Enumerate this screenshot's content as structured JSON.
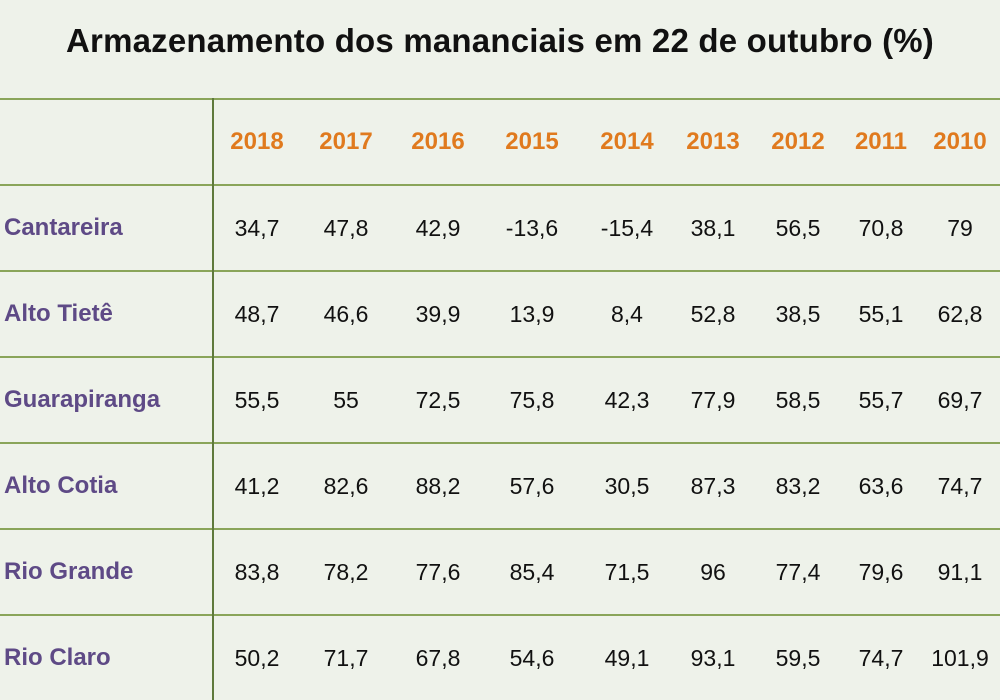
{
  "title": "Armazenamento dos mananciais em 22 de outubro (%)",
  "colors": {
    "background": "#eef2ea",
    "gridline": "#8aa55a",
    "year_header": "#e07a1e",
    "row_label": "#5e4a86",
    "value_text": "#111111"
  },
  "chart_data": {
    "type": "table",
    "title": "Armazenamento dos mananciais em 22 de outubro (%)",
    "columns": [
      "2018",
      "2017",
      "2016",
      "2015",
      "2014",
      "2013",
      "2012",
      "2011",
      "2010"
    ],
    "rows": [
      {
        "label": "Cantareira",
        "values": [
          "34,7",
          "47,8",
          "42,9",
          "-13,6",
          "-15,4",
          "38,1",
          "56,5",
          "70,8",
          "79"
        ]
      },
      {
        "label": "Alto Tietê",
        "values": [
          "48,7",
          "46,6",
          "39,9",
          "13,9",
          "8,4",
          "52,8",
          "38,5",
          "55,1",
          "62,8"
        ]
      },
      {
        "label": "Guarapiranga",
        "values": [
          "55,5",
          "55",
          "72,5",
          "75,8",
          "42,3",
          "77,9",
          "58,5",
          "55,7",
          "69,7"
        ]
      },
      {
        "label": "Alto Cotia",
        "values": [
          "41,2",
          "82,6",
          "88,2",
          "57,6",
          "30,5",
          "87,3",
          "83,2",
          "63,6",
          "74,7"
        ]
      },
      {
        "label": "Rio Grande",
        "values": [
          "83,8",
          "78,2",
          "77,6",
          "85,4",
          "71,5",
          "96",
          "77,4",
          "79,6",
          "91,1"
        ]
      },
      {
        "label": "Rio Claro",
        "values": [
          "50,2",
          "71,7",
          "67,8",
          "54,6",
          "49,1",
          "93,1",
          "59,5",
          "74,7",
          "101,9"
        ]
      }
    ]
  }
}
